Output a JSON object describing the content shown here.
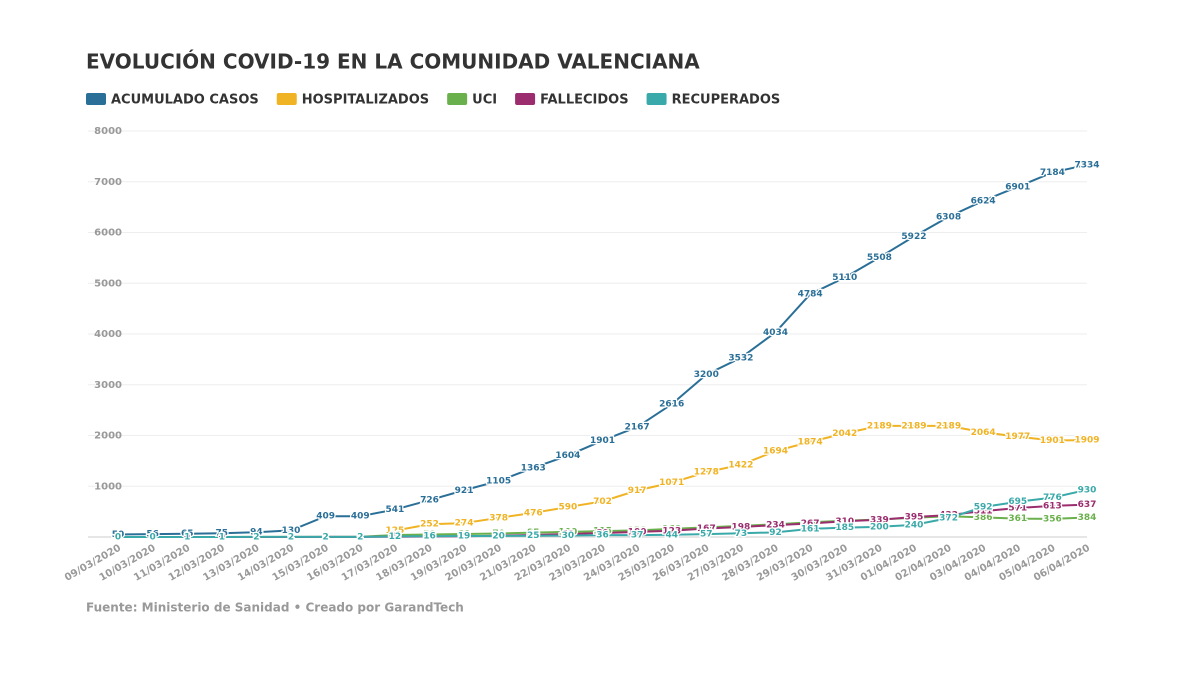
{
  "chart_data": {
    "type": "line",
    "title": "EVOLUCIÓN COVID-19 EN LA COMUNIDAD VALENCIANA",
    "source": "Fuente: Ministerio de Sanidad • Creado por GarandTech",
    "categories": [
      "09/03/2020",
      "10/03/2020",
      "11/03/2020",
      "12/03/2020",
      "13/03/2020",
      "14/03/2020",
      "15/03/2020",
      "16/03/2020",
      "17/03/2020",
      "18/03/2020",
      "19/03/2020",
      "20/03/2020",
      "21/03/2020",
      "22/03/2020",
      "23/03/2020",
      "24/03/2020",
      "25/03/2020",
      "26/03/2020",
      "27/03/2020",
      "28/03/2020",
      "29/03/2020",
      "30/03/2020",
      "31/03/2020",
      "01/04/2020",
      "02/04/2020",
      "03/04/2020",
      "04/04/2020",
      "05/04/2020",
      "06/04/2020"
    ],
    "series": [
      {
        "name": "ACUMULADO CASOS",
        "color": "#2a6f97",
        "values": [
          50,
          56,
          65,
          75,
          94,
          130,
          409,
          409,
          541,
          726,
          921,
          1105,
          1363,
          1604,
          1901,
          2167,
          2616,
          3200,
          3532,
          4034,
          4784,
          5110,
          5508,
          5922,
          6308,
          6624,
          6901,
          7184,
          7334
        ]
      },
      {
        "name": "HOSPITALIZADOS",
        "color": "#f0b323",
        "values": [
          null,
          null,
          null,
          null,
          null,
          null,
          null,
          null,
          125,
          252,
          274,
          378,
          476,
          590,
          702,
          917,
          1071,
          1278,
          1422,
          1694,
          1874,
          2042,
          2189,
          2189,
          2189,
          2064,
          1977,
          1901,
          1909
        ]
      },
      {
        "name": "UCI",
        "color": "#6ab04c",
        "values": [
          0,
          0,
          1,
          1,
          2,
          2,
          2,
          2,
          40,
          50,
          60,
          70,
          85,
          100,
          115,
          130,
          160,
          190,
          220,
          250,
          290,
          320,
          345,
          380,
          410,
          386,
          361,
          356,
          384
        ]
      },
      {
        "name": "FALLECIDOS",
        "color": "#9b2d6f",
        "values": [
          0,
          0,
          0,
          0,
          1,
          1,
          2,
          2,
          5,
          10,
          15,
          25,
          40,
          60,
          80,
          100,
          123,
          167,
          198,
          234,
          267,
          310,
          339,
          395,
          432,
          511,
          571,
          613,
          637
        ]
      },
      {
        "name": "RECUPERADOS",
        "color": "#3aa9a9",
        "values": [
          0,
          0,
          1,
          1,
          2,
          2,
          2,
          2,
          12,
          16,
          19,
          20,
          25,
          30,
          36,
          37,
          44,
          57,
          73,
          92,
          161,
          185,
          200,
          240,
          372,
          592,
          695,
          776,
          930
        ]
      }
    ],
    "ylim": [
      0,
      8000
    ],
    "yticks": [
      1000,
      2000,
      3000,
      4000,
      5000,
      6000,
      7000,
      8000
    ],
    "grid": true
  }
}
